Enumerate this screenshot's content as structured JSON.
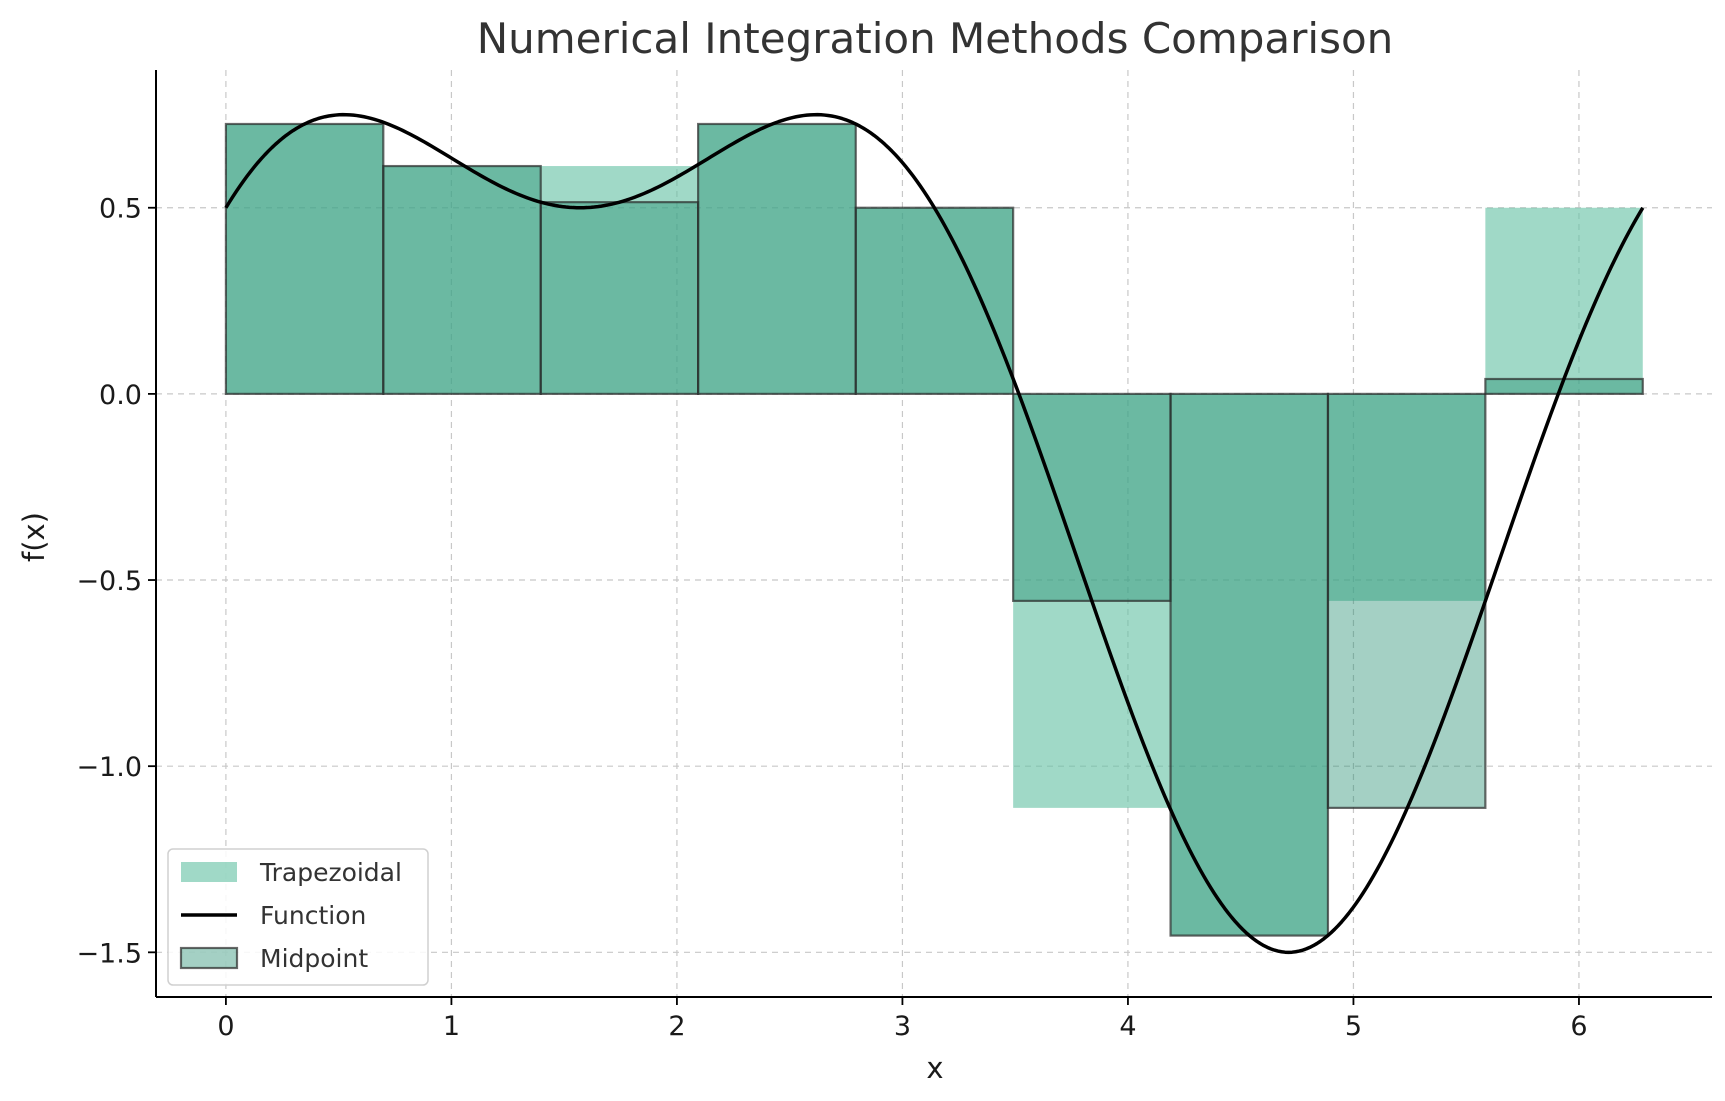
{
  "chart_data": {
    "type": "bar",
    "title": "Numerical Integration Methods Comparison",
    "xlabel": "x",
    "ylabel": "f(x)",
    "xlim": [
      -0.31,
      6.59
    ],
    "ylim": [
      -1.62,
      0.87
    ],
    "x_ticks": [
      {
        "value": 0,
        "label": "0"
      },
      {
        "value": 1,
        "label": "1"
      },
      {
        "value": 2,
        "label": "2"
      },
      {
        "value": 3,
        "label": "3"
      },
      {
        "value": 4,
        "label": "4"
      },
      {
        "value": 5,
        "label": "5"
      },
      {
        "value": 6,
        "label": "6"
      }
    ],
    "y_ticks": [
      {
        "value": 0.5,
        "label": "0.5"
      },
      {
        "value": 0.0,
        "label": "0.0"
      },
      {
        "value": -0.5,
        "label": "−0.5"
      },
      {
        "value": -1.0,
        "label": "−1.0"
      },
      {
        "value": -1.5,
        "label": "−1.5"
      }
    ],
    "grid": true,
    "legend_position": "lower-left",
    "interval_edges": [
      0,
      0.698,
      1.396,
      2.094,
      2.793,
      3.491,
      4.189,
      4.887,
      5.585,
      6.283
    ],
    "series": [
      {
        "name": "Trapezoidal",
        "kind": "bar",
        "color": "#66c2a5",
        "values": [
          0.725,
          0.612,
          0.612,
          0.725,
          0.5,
          -1.112,
          -1.455,
          -0.556,
          0.5
        ]
      },
      {
        "name": "Function",
        "kind": "line",
        "color": "#000000",
        "expression": "sin(x) + 0.5*cos(2x)",
        "x_range": [
          0,
          6.283
        ],
        "samples": 400
      },
      {
        "name": "Midpoint",
        "kind": "bar",
        "color": "#1b8a6b",
        "edge_color": "#2a2a2a",
        "values": [
          0.725,
          0.612,
          0.515,
          0.725,
          0.5,
          -0.556,
          -1.455,
          -1.112,
          0.04
        ]
      }
    ],
    "legend": [
      "Trapezoidal",
      "Function",
      "Midpoint"
    ]
  }
}
